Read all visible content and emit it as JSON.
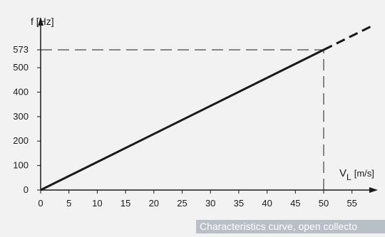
{
  "chart_data": {
    "type": "line",
    "title": "",
    "ylabel": "f [Hz]",
    "xlabel_main": "V",
    "xlabel_sub": "L",
    "xlabel_unit": "[m/s]",
    "x_ticks": [
      0,
      5,
      10,
      15,
      20,
      25,
      30,
      35,
      40,
      45,
      50,
      55
    ],
    "y_ticks": [
      0,
      100,
      200,
      300,
      400,
      500
    ],
    "y_marker": 573,
    "y_marker_label": "573",
    "xlim": [
      0,
      59
    ],
    "ylim": [
      0,
      640
    ],
    "series": [
      {
        "x": [
          0,
          50
        ],
        "y": [
          0,
          573
        ],
        "style": "solid"
      },
      {
        "x": [
          50,
          59
        ],
        "y": [
          573,
          676
        ],
        "style": "dashed"
      }
    ],
    "reference_lines": [
      {
        "orientation": "horizontal",
        "y": 573,
        "x_from": 0,
        "x_to": 50
      },
      {
        "orientation": "vertical",
        "x": 50,
        "y_from": 0,
        "y_to": 573
      }
    ],
    "grid": false
  },
  "caption": "Characteristics curve, open collecto",
  "colors": {
    "background": "#f2f2f2",
    "line": "#1a1a1a",
    "caption_bg": "#b9bfc6",
    "caption_text": "#ffffff"
  }
}
